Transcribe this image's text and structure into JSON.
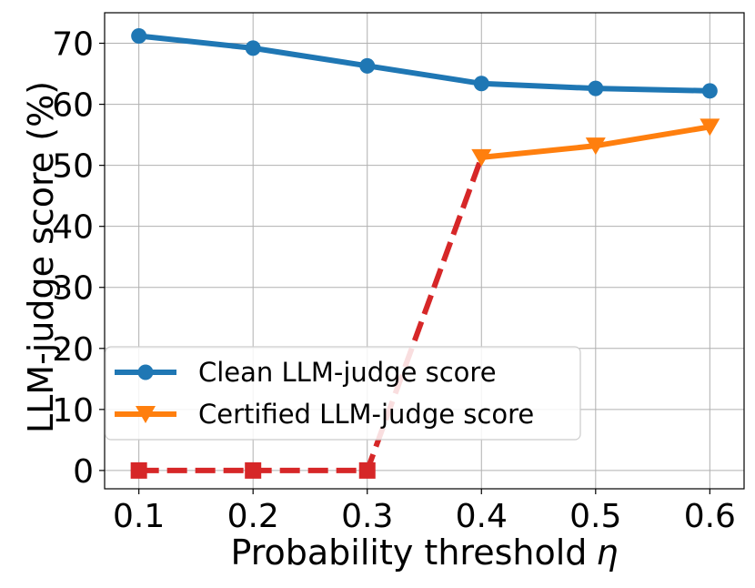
{
  "chart_data": {
    "type": "line",
    "xlabel": "Probability threshold",
    "xlabel_symbol": "η",
    "ylabel": "LLM-judge score (%)",
    "x": [
      0.1,
      0.2,
      0.3,
      0.4,
      0.5,
      0.6
    ],
    "x_tick_labels": [
      "0.1",
      "0.2",
      "0.3",
      "0.4",
      "0.5",
      "0.6"
    ],
    "xlim": [
      0.07,
      0.63
    ],
    "ylim": [
      -3,
      75
    ],
    "y_ticks": [
      0,
      10,
      20,
      30,
      40,
      50,
      60,
      70
    ],
    "y_tick_labels": [
      "0",
      "10",
      "20",
      "30",
      "40",
      "50",
      "60",
      "70"
    ],
    "grid": true,
    "legend_position": "bottom-left",
    "series": [
      {
        "name": "Clean LLM-judge score",
        "x": [
          0.1,
          0.2,
          0.3,
          0.4,
          0.5,
          0.6
        ],
        "values": [
          71.2,
          69.2,
          66.3,
          63.4,
          62.6,
          62.2
        ],
        "color": "#1f77b4",
        "marker": "circle",
        "linestyle": "solid",
        "in_legend": true
      },
      {
        "name": "Certified LLM-judge score",
        "x": [
          0.4,
          0.5,
          0.6
        ],
        "values": [
          51.3,
          53.2,
          56.3
        ],
        "color": "#ff7f0e",
        "marker": "triangle-down",
        "linestyle": "solid",
        "in_legend": true
      },
      {
        "name": "",
        "x": [
          0.1,
          0.2,
          0.3,
          0.4
        ],
        "values": [
          0,
          0,
          0,
          51.3
        ],
        "color": "#d62728",
        "marker": "square",
        "marker_count": 3,
        "linestyle": "dashed",
        "in_legend": false
      }
    ]
  }
}
